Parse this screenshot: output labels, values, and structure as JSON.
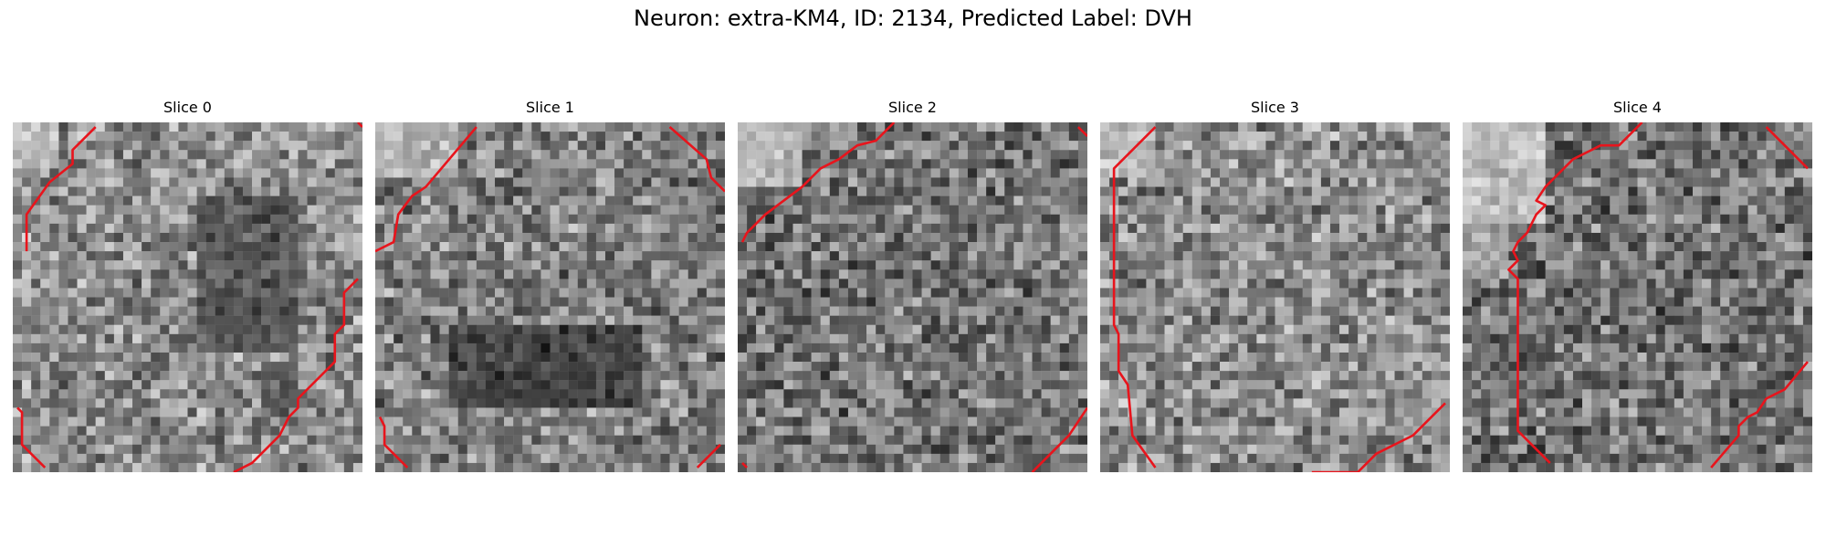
{
  "figure": {
    "title": "Neuron: extra-KM4, ID: 2134, Predicted Label: DVH"
  },
  "style": {
    "contour_color": "#e8141c",
    "colormap": "grayscale"
  },
  "slices": [
    {
      "title": "Slice 0",
      "seed": 11,
      "base": [
        0.55,
        0.55
      ],
      "bright": [
        [
          0,
          0,
          4,
          4,
          0.9
        ],
        [
          20,
          8,
          30,
          24,
          0.2
        ],
        [
          27,
          26,
          30,
          30,
          0.25
        ]
      ],
      "contours": [
        [
          [
            1.5,
            14
          ],
          [
            1.5,
            10
          ],
          [
            4,
            6.5
          ],
          [
            6.5,
            4.5
          ],
          [
            6.5,
            3
          ],
          [
            9,
            0.5
          ]
        ],
        [
          [
            38,
            0.5
          ],
          [
            37.5,
            0
          ]
        ],
        [
          [
            0.5,
            31
          ],
          [
            1,
            31.5
          ],
          [
            1,
            35
          ],
          [
            3.5,
            37.5
          ]
        ],
        [
          [
            37.5,
            17
          ],
          [
            36,
            18.5
          ],
          [
            36,
            22
          ],
          [
            35,
            23
          ],
          [
            35,
            26
          ],
          [
            31,
            30
          ],
          [
            31,
            31
          ],
          [
            30,
            32
          ],
          [
            29,
            34
          ],
          [
            26,
            37
          ],
          [
            24,
            38
          ]
        ]
      ]
    },
    {
      "title": "Slice 1",
      "seed": 23,
      "base": [
        0.5,
        0.5
      ],
      "bright": [
        [
          0,
          0,
          8,
          5,
          0.85
        ],
        [
          8,
          22,
          28,
          30,
          0.1
        ]
      ],
      "contours": [
        [
          [
            0,
            14
          ],
          [
            2,
            13
          ],
          [
            2.5,
            10
          ],
          [
            4,
            8
          ],
          [
            5.5,
            7
          ],
          [
            11,
            0.5
          ]
        ],
        [
          [
            32,
            0.5
          ],
          [
            36,
            4
          ],
          [
            36.5,
            6
          ],
          [
            38,
            7.5
          ]
        ],
        [
          [
            0.5,
            32
          ],
          [
            1,
            33
          ],
          [
            1,
            35
          ],
          [
            3.5,
            37.5
          ]
        ],
        [
          [
            37.5,
            35
          ],
          [
            35,
            37.5
          ]
        ]
      ]
    },
    {
      "title": "Slice 2",
      "seed": 37,
      "base": [
        0.45,
        0.45
      ],
      "bright": [
        [
          0,
          0,
          6,
          6,
          0.9
        ],
        [
          7,
          0,
          12,
          2,
          0.7
        ]
      ],
      "contours": [
        [
          [
            0.5,
            13
          ],
          [
            1,
            12
          ],
          [
            3,
            10
          ],
          [
            5,
            8.5
          ],
          [
            7,
            7
          ],
          [
            9,
            5
          ],
          [
            11,
            4
          ],
          [
            13,
            2.5
          ],
          [
            15,
            2
          ],
          [
            17,
            0
          ]
        ],
        [
          [
            37,
            0.5
          ],
          [
            38,
            1.5
          ]
        ],
        [
          [
            0.5,
            37
          ],
          [
            1,
            37.5
          ]
        ],
        [
          [
            38,
            31
          ],
          [
            37,
            32.5
          ],
          [
            36,
            34
          ],
          [
            34,
            36
          ],
          [
            32,
            38
          ]
        ]
      ]
    },
    {
      "title": "Slice 3",
      "seed": 51,
      "base": [
        0.55,
        0.5
      ],
      "bright": [
        [
          0,
          0,
          5,
          5,
          0.85
        ],
        [
          34,
          0,
          38,
          6,
          0.6
        ],
        [
          32,
          30,
          38,
          34,
          0.6
        ]
      ],
      "contours": [
        [
          [
            6,
            0.5
          ],
          [
            1.5,
            5
          ],
          [
            1.5,
            22
          ],
          [
            2,
            23
          ],
          [
            2,
            27
          ],
          [
            3,
            28.5
          ],
          [
            3.5,
            34
          ],
          [
            6,
            37.5
          ]
        ],
        [
          [
            23,
            38
          ],
          [
            28,
            38
          ],
          [
            30,
            36
          ],
          [
            32,
            35
          ],
          [
            34,
            34
          ],
          [
            35,
            33
          ],
          [
            37.5,
            30.5
          ]
        ]
      ]
    },
    {
      "title": "Slice 4",
      "seed": 67,
      "base": [
        0.45,
        0.55
      ],
      "bright": [
        [
          0,
          0,
          8,
          10,
          0.95
        ],
        [
          0,
          10,
          4,
          16,
          0.75
        ]
      ],
      "contours": [
        [
          [
            19.5,
            0
          ],
          [
            17,
            2.5
          ],
          [
            15,
            2.5
          ],
          [
            14,
            3
          ],
          [
            12,
            4
          ],
          [
            10,
            6
          ],
          [
            9,
            7
          ],
          [
            8,
            8.5
          ],
          [
            9,
            9
          ],
          [
            8,
            10
          ],
          [
            7,
            12
          ],
          [
            6,
            13
          ],
          [
            5.5,
            14
          ],
          [
            6,
            15
          ],
          [
            5,
            16
          ],
          [
            6,
            17
          ],
          [
            6,
            33.5
          ],
          [
            8,
            35.5
          ],
          [
            9.5,
            37
          ]
        ],
        [
          [
            33,
            0.5
          ],
          [
            37.5,
            5
          ]
        ],
        [
          [
            27,
            37.5
          ],
          [
            30,
            34
          ],
          [
            30,
            33
          ],
          [
            31,
            32
          ],
          [
            32,
            31.5
          ],
          [
            33,
            30
          ],
          [
            35,
            29
          ],
          [
            37.5,
            26
          ]
        ]
      ]
    }
  ]
}
